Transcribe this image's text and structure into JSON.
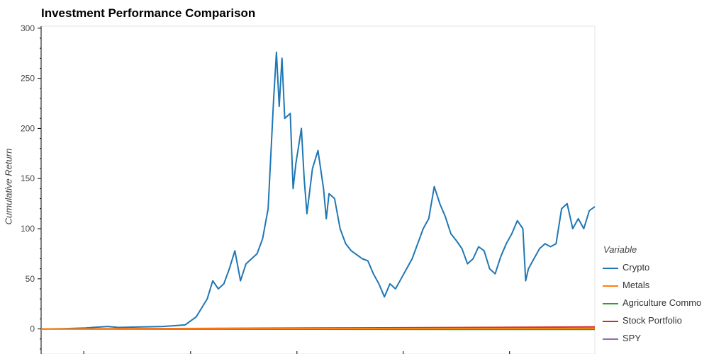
{
  "chart_data": {
    "type": "line",
    "title": "Investment Performance Comparison",
    "ylabel": "Cumulative Return",
    "xlabel": "",
    "ylim": [
      -25,
      302
    ],
    "yticks": [
      0,
      50,
      100,
      150,
      200,
      250,
      300
    ],
    "legend_title": "Variable",
    "legend_position": "right",
    "grid": false,
    "series": [
      {
        "name": "Crypto",
        "color": "#1f77b4",
        "points": [
          [
            0,
            0
          ],
          [
            0.04,
            0.3
          ],
          [
            0.08,
            1
          ],
          [
            0.12,
            2.5
          ],
          [
            0.14,
            1.5
          ],
          [
            0.18,
            2
          ],
          [
            0.22,
            2.5
          ],
          [
            0.26,
            4
          ],
          [
            0.28,
            12
          ],
          [
            0.3,
            30
          ],
          [
            0.31,
            48
          ],
          [
            0.32,
            40
          ],
          [
            0.33,
            45
          ],
          [
            0.34,
            60
          ],
          [
            0.35,
            78
          ],
          [
            0.36,
            48
          ],
          [
            0.37,
            65
          ],
          [
            0.38,
            70
          ],
          [
            0.39,
            75
          ],
          [
            0.4,
            90
          ],
          [
            0.41,
            120
          ],
          [
            0.42,
            230
          ],
          [
            0.425,
            276
          ],
          [
            0.43,
            222
          ],
          [
            0.435,
            270
          ],
          [
            0.44,
            210
          ],
          [
            0.45,
            215
          ],
          [
            0.455,
            140
          ],
          [
            0.46,
            165
          ],
          [
            0.47,
            200
          ],
          [
            0.475,
            150
          ],
          [
            0.48,
            115
          ],
          [
            0.49,
            160
          ],
          [
            0.5,
            178
          ],
          [
            0.51,
            140
          ],
          [
            0.515,
            110
          ],
          [
            0.52,
            135
          ],
          [
            0.53,
            130
          ],
          [
            0.54,
            100
          ],
          [
            0.55,
            85
          ],
          [
            0.56,
            78
          ],
          [
            0.57,
            74
          ],
          [
            0.58,
            70
          ],
          [
            0.59,
            68
          ],
          [
            0.6,
            55
          ],
          [
            0.61,
            45
          ],
          [
            0.62,
            32
          ],
          [
            0.63,
            45
          ],
          [
            0.64,
            40
          ],
          [
            0.65,
            50
          ],
          [
            0.66,
            60
          ],
          [
            0.67,
            70
          ],
          [
            0.68,
            85
          ],
          [
            0.69,
            100
          ],
          [
            0.7,
            110
          ],
          [
            0.71,
            142
          ],
          [
            0.72,
            125
          ],
          [
            0.73,
            112
          ],
          [
            0.74,
            95
          ],
          [
            0.75,
            88
          ],
          [
            0.76,
            80
          ],
          [
            0.77,
            65
          ],
          [
            0.78,
            70
          ],
          [
            0.79,
            82
          ],
          [
            0.8,
            78
          ],
          [
            0.81,
            60
          ],
          [
            0.82,
            55
          ],
          [
            0.83,
            72
          ],
          [
            0.84,
            85
          ],
          [
            0.85,
            95
          ],
          [
            0.86,
            108
          ],
          [
            0.87,
            100
          ],
          [
            0.875,
            48
          ],
          [
            0.88,
            60
          ],
          [
            0.89,
            70
          ],
          [
            0.9,
            80
          ],
          [
            0.91,
            85
          ],
          [
            0.92,
            82
          ],
          [
            0.93,
            85
          ],
          [
            0.94,
            120
          ],
          [
            0.95,
            125
          ],
          [
            0.96,
            100
          ],
          [
            0.97,
            110
          ],
          [
            0.98,
            100
          ],
          [
            0.99,
            118
          ],
          [
            1.0,
            122
          ]
        ]
      },
      {
        "name": "Metals",
        "color": "#ff7f0e",
        "points": [
          [
            0,
            0
          ],
          [
            0.25,
            0.2
          ],
          [
            0.5,
            0.4
          ],
          [
            0.75,
            0.5
          ],
          [
            1.0,
            0.6
          ]
        ]
      },
      {
        "name": "Agriculture Commo",
        "color": "#2ca02c",
        "points": [
          [
            0,
            0
          ],
          [
            0.25,
            -0.2
          ],
          [
            0.5,
            -0.3
          ],
          [
            0.75,
            -0.5
          ],
          [
            1.0,
            -0.4
          ]
        ]
      },
      {
        "name": "Stock Portfolio",
        "color": "#d62728",
        "points": [
          [
            0,
            0
          ],
          [
            0.25,
            0.4
          ],
          [
            0.5,
            0.9
          ],
          [
            0.75,
            1.4
          ],
          [
            1.0,
            2
          ]
        ]
      },
      {
        "name": "SPY",
        "color": "#9467bd",
        "points": [
          [
            0,
            0
          ],
          [
            0.25,
            0.1
          ],
          [
            0.5,
            0.2
          ],
          [
            0.75,
            0.3
          ],
          [
            1.0,
            0.4
          ]
        ]
      }
    ]
  }
}
